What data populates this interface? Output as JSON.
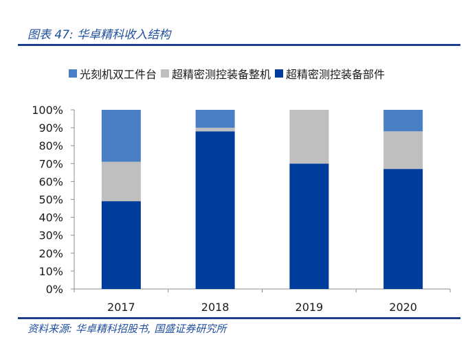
{
  "header": {
    "title": "图表 47: 华卓精科收入结构"
  },
  "footer": {
    "source": "资料来源: 华卓精科招股书, 国盛证券研究所"
  },
  "colors": {
    "series1": "#4a7fc6",
    "series2": "#bfbfbf",
    "series3": "#003c9c",
    "rule": "#1e3d8f",
    "title": "#1f4e9e"
  },
  "chart_data": {
    "type": "bar",
    "stacked": true,
    "categories": [
      "2017",
      "2018",
      "2019",
      "2020"
    ],
    "series": [
      {
        "name": "超精密测控装备部件",
        "values": [
          49,
          88,
          70,
          67
        ]
      },
      {
        "name": "超精密测控装备整机",
        "values": [
          22,
          2,
          30,
          21
        ]
      },
      {
        "name": "光刻机双工件台",
        "values": [
          29,
          10,
          0,
          12
        ]
      }
    ],
    "legend_order": [
      "光刻机双工件台",
      "超精密测控装备整机",
      "超精密测控装备部件"
    ],
    "ylim": [
      0,
      100
    ],
    "yticks": [
      "0%",
      "10%",
      "20%",
      "30%",
      "40%",
      "50%",
      "60%",
      "70%",
      "80%",
      "90%",
      "100%"
    ],
    "grid": false,
    "legend_position": "top"
  }
}
